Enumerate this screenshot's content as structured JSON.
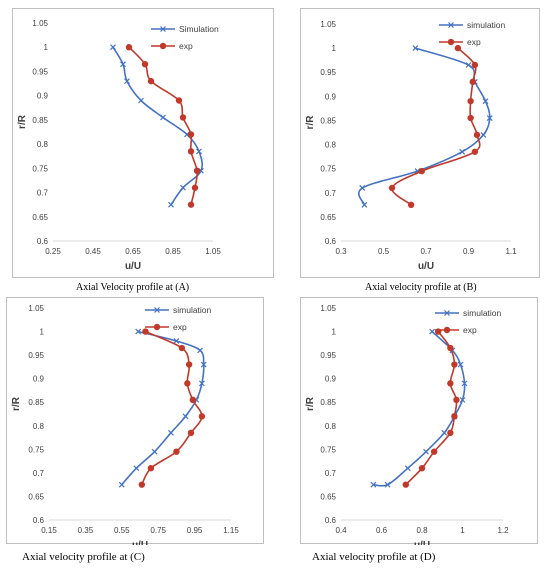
{
  "charts": [
    {
      "caption": "Axial Velocity profile at (A)",
      "chart_data": {
        "type": "line",
        "xlabel": "u/U",
        "ylabel": "r/R",
        "xlim": [
          0.25,
          1.05
        ],
        "ylim": [
          0.6,
          1.05
        ],
        "xticks": [
          0.25,
          0.45,
          0.65,
          0.85,
          1.05
        ],
        "xtick_labels": [
          "0.25",
          "0.45",
          "0.65",
          "0.85",
          "1.05"
        ],
        "yticks": [
          0.6,
          0.65,
          0.7,
          0.75,
          0.8,
          0.85,
          0.9,
          0.95,
          1.0,
          1.05
        ],
        "ytick_labels": [
          "0.6",
          "0.65",
          "0.7",
          "0.75",
          "0.8",
          "0.85",
          "0.9",
          "0.95",
          "1",
          "1.05"
        ],
        "legend_position": "top-right",
        "series": [
          {
            "name": "Simulation",
            "marker": "x",
            "color": "#4472c4",
            "x": [
              0.55,
              0.6,
              0.62,
              0.69,
              0.8,
              0.92,
              0.98,
              0.99,
              0.9,
              0.84
            ],
            "y": [
              1.0,
              0.965,
              0.93,
              0.89,
              0.855,
              0.82,
              0.785,
              0.745,
              0.71,
              0.675
            ]
          },
          {
            "name": "exp",
            "marker": "o",
            "color": "#c0392b",
            "x": [
              0.63,
              0.71,
              0.74,
              0.88,
              0.9,
              0.94,
              0.94,
              0.97,
              0.96,
              0.94
            ],
            "y": [
              1.0,
              0.965,
              0.93,
              0.89,
              0.855,
              0.82,
              0.785,
              0.745,
              0.71,
              0.675
            ]
          }
        ]
      }
    },
    {
      "caption": "Axial velocity profile at (B)",
      "chart_data": {
        "type": "line",
        "xlabel": "u/U",
        "ylabel": "r/R",
        "xlim": [
          0.3,
          1.1
        ],
        "ylim": [
          0.6,
          1.05
        ],
        "xticks": [
          0.3,
          0.5,
          0.7,
          0.9,
          1.1
        ],
        "xtick_labels": [
          "0.3",
          "0.5",
          "0.7",
          "0.9",
          "1.1"
        ],
        "yticks": [
          0.6,
          0.65,
          0.7,
          0.75,
          0.8,
          0.85,
          0.9,
          0.95,
          1.0,
          1.05
        ],
        "ytick_labels": [
          "0.6",
          "0.65",
          "0.7",
          "0.75",
          "0.8",
          "0.85",
          "0.9",
          "0.95",
          "1",
          "1.05"
        ],
        "legend_position": "top-right",
        "series": [
          {
            "name": "simulation",
            "marker": "x",
            "color": "#4472c4",
            "x": [
              0.65,
              0.9,
              0.93,
              0.98,
              1.0,
              0.97,
              0.87,
              0.66,
              0.4,
              0.41
            ],
            "y": [
              1.0,
              0.965,
              0.93,
              0.89,
              0.855,
              0.82,
              0.785,
              0.745,
              0.71,
              0.675
            ]
          },
          {
            "name": "exp",
            "marker": "o",
            "color": "#c0392b",
            "x": [
              0.85,
              0.93,
              0.92,
              0.91,
              0.91,
              0.94,
              0.93,
              0.68,
              0.54,
              0.63
            ],
            "y": [
              1.0,
              0.965,
              0.93,
              0.89,
              0.855,
              0.82,
              0.785,
              0.745,
              0.71,
              0.675
            ]
          }
        ]
      }
    },
    {
      "caption": "Axial velocity profile at (C)",
      "chart_data": {
        "type": "line",
        "xlabel": "u/U",
        "ylabel": "r/R",
        "xlim": [
          0.15,
          1.15
        ],
        "ylim": [
          0.6,
          1.05
        ],
        "xticks": [
          0.15,
          0.35,
          0.55,
          0.75,
          0.95,
          1.15
        ],
        "xtick_labels": [
          "0.15",
          "0.35",
          "0.55",
          "0.75",
          "0.95",
          "1.15"
        ],
        "yticks": [
          0.6,
          0.65,
          0.7,
          0.75,
          0.8,
          0.85,
          0.9,
          0.95,
          1.0,
          1.05
        ],
        "ytick_labels": [
          "0.6",
          "0.65",
          "0.7",
          "0.75",
          "0.8",
          "0.85",
          "0.9",
          "0.95",
          "1",
          "1.05"
        ],
        "legend_position": "top-right",
        "series": [
          {
            "name": "simulation",
            "marker": "x",
            "color": "#4472c4",
            "x": [
              0.64,
              0.85,
              0.98,
              1.0,
              0.99,
              0.96,
              0.9,
              0.82,
              0.73,
              0.63,
              0.55
            ],
            "y": [
              1.0,
              0.98,
              0.96,
              0.93,
              0.89,
              0.855,
              0.82,
              0.785,
              0.745,
              0.71,
              0.675
            ]
          },
          {
            "name": "exp",
            "marker": "o",
            "color": "#c0392b",
            "x": [
              0.68,
              0.88,
              0.92,
              0.91,
              0.94,
              0.99,
              0.93,
              0.85,
              0.71,
              0.66
            ],
            "y": [
              1.0,
              0.965,
              0.93,
              0.89,
              0.855,
              0.82,
              0.785,
              0.745,
              0.71,
              0.675
            ]
          }
        ]
      }
    },
    {
      "caption": "Axial velocity profile at (D)",
      "chart_data": {
        "type": "line",
        "xlabel": "u/U",
        "ylabel": "r/R",
        "xlim": [
          0.4,
          1.2
        ],
        "ylim": [
          0.6,
          1.05
        ],
        "xticks": [
          0.4,
          0.6,
          0.8,
          1.0,
          1.2
        ],
        "xtick_labels": [
          "0.4",
          "0.6",
          "0.8",
          "1",
          "1.2"
        ],
        "yticks": [
          0.6,
          0.65,
          0.7,
          0.75,
          0.8,
          0.85,
          0.9,
          0.95,
          1.0,
          1.05
        ],
        "ytick_labels": [
          "0.6",
          "0.65",
          "0.7",
          "0.75",
          "0.8",
          "0.85",
          "0.9",
          "0.95",
          "1",
          "1.05"
        ],
        "legend_position": "top-right",
        "series": [
          {
            "name": "simulation",
            "marker": "x",
            "color": "#4472c4",
            "x": [
              0.85,
              0.95,
              0.99,
              1.01,
              1.0,
              0.96,
              0.91,
              0.82,
              0.73,
              0.63,
              0.56
            ],
            "y": [
              1.0,
              0.96,
              0.93,
              0.89,
              0.855,
              0.82,
              0.785,
              0.745,
              0.71,
              0.675,
              0.675
            ]
          },
          {
            "name": "exp",
            "marker": "o",
            "color": "#c0392b",
            "x": [
              0.88,
              0.94,
              0.96,
              0.94,
              0.97,
              0.96,
              0.94,
              0.86,
              0.8,
              0.72
            ],
            "y": [
              1.0,
              0.965,
              0.93,
              0.89,
              0.855,
              0.82,
              0.785,
              0.745,
              0.71,
              0.675
            ]
          }
        ]
      }
    }
  ]
}
